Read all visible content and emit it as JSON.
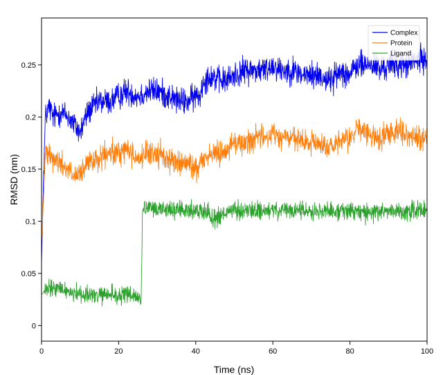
{
  "chart_data": {
    "type": "line",
    "title": "",
    "xlabel": "Time (ns)",
    "ylabel": "RMSD (nm)",
    "xlim": [
      0,
      100
    ],
    "ylim": [
      -0.015,
      0.295
    ],
    "xticks": [
      0,
      20,
      40,
      60,
      80,
      100
    ],
    "yticks": [
      0,
      0.05,
      0.1,
      0.15,
      0.2,
      0.25
    ],
    "xtick_labels": [
      "0",
      "20",
      "40",
      "60",
      "80",
      "100"
    ],
    "ytick_labels": [
      "0",
      "0.05",
      "0.1",
      "0.15",
      "0.2",
      "0.25"
    ],
    "grid": false,
    "legend_position": "top-right",
    "series": [
      {
        "name": "Complex",
        "color": "#0000ee",
        "noise": 0.012,
        "x": [
          0,
          0.5,
          1,
          2,
          3,
          5,
          7,
          9,
          10,
          12,
          15,
          18,
          20,
          22,
          25,
          28,
          30,
          33,
          36,
          38,
          40,
          41,
          42,
          44,
          46,
          48,
          50,
          53,
          55,
          58,
          60,
          62,
          65,
          68,
          70,
          72,
          75,
          78,
          80,
          82,
          84,
          86,
          88,
          90,
          93,
          95,
          98,
          100
        ],
        "y": [
          0.06,
          0.14,
          0.2,
          0.21,
          0.2,
          0.205,
          0.2,
          0.19,
          0.185,
          0.205,
          0.215,
          0.215,
          0.22,
          0.225,
          0.22,
          0.225,
          0.225,
          0.22,
          0.215,
          0.215,
          0.22,
          0.22,
          0.235,
          0.24,
          0.235,
          0.235,
          0.24,
          0.245,
          0.245,
          0.245,
          0.25,
          0.245,
          0.245,
          0.24,
          0.24,
          0.24,
          0.235,
          0.245,
          0.24,
          0.25,
          0.25,
          0.25,
          0.245,
          0.25,
          0.25,
          0.25,
          0.255,
          0.255
        ]
      },
      {
        "name": "Protein",
        "color": "#ff7f0e",
        "noise": 0.011,
        "x": [
          0,
          0.5,
          1,
          2,
          3,
          5,
          7,
          9,
          10,
          12,
          15,
          18,
          20,
          22,
          25,
          28,
          30,
          33,
          36,
          38,
          40,
          41,
          42,
          44,
          46,
          48,
          50,
          53,
          55,
          58,
          60,
          62,
          65,
          68,
          70,
          72,
          75,
          78,
          80,
          82,
          84,
          86,
          88,
          90,
          93,
          95,
          98,
          100
        ],
        "y": [
          0.08,
          0.12,
          0.165,
          0.17,
          0.16,
          0.155,
          0.15,
          0.14,
          0.145,
          0.155,
          0.16,
          0.165,
          0.165,
          0.17,
          0.16,
          0.165,
          0.165,
          0.16,
          0.155,
          0.155,
          0.15,
          0.155,
          0.16,
          0.165,
          0.165,
          0.17,
          0.175,
          0.175,
          0.18,
          0.18,
          0.185,
          0.18,
          0.18,
          0.175,
          0.175,
          0.175,
          0.17,
          0.175,
          0.18,
          0.19,
          0.185,
          0.18,
          0.18,
          0.185,
          0.19,
          0.18,
          0.18,
          0.18
        ]
      },
      {
        "name": "Ligand",
        "color": "#2ca02c",
        "noise": 0.008,
        "x": [
          0,
          2,
          5,
          8,
          10,
          12,
          15,
          18,
          20,
          23,
          25.8,
          26.2,
          28,
          30,
          33,
          36,
          40,
          43,
          44,
          45,
          46,
          48,
          50,
          55,
          60,
          65,
          70,
          75,
          80,
          85,
          90,
          95,
          100
        ],
        "y": [
          0.03,
          0.035,
          0.035,
          0.032,
          0.03,
          0.03,
          0.028,
          0.03,
          0.028,
          0.03,
          0.025,
          0.11,
          0.112,
          0.112,
          0.112,
          0.11,
          0.11,
          0.11,
          0.105,
          0.102,
          0.105,
          0.108,
          0.11,
          0.11,
          0.11,
          0.11,
          0.11,
          0.11,
          0.11,
          0.108,
          0.11,
          0.11,
          0.11
        ]
      }
    ]
  }
}
